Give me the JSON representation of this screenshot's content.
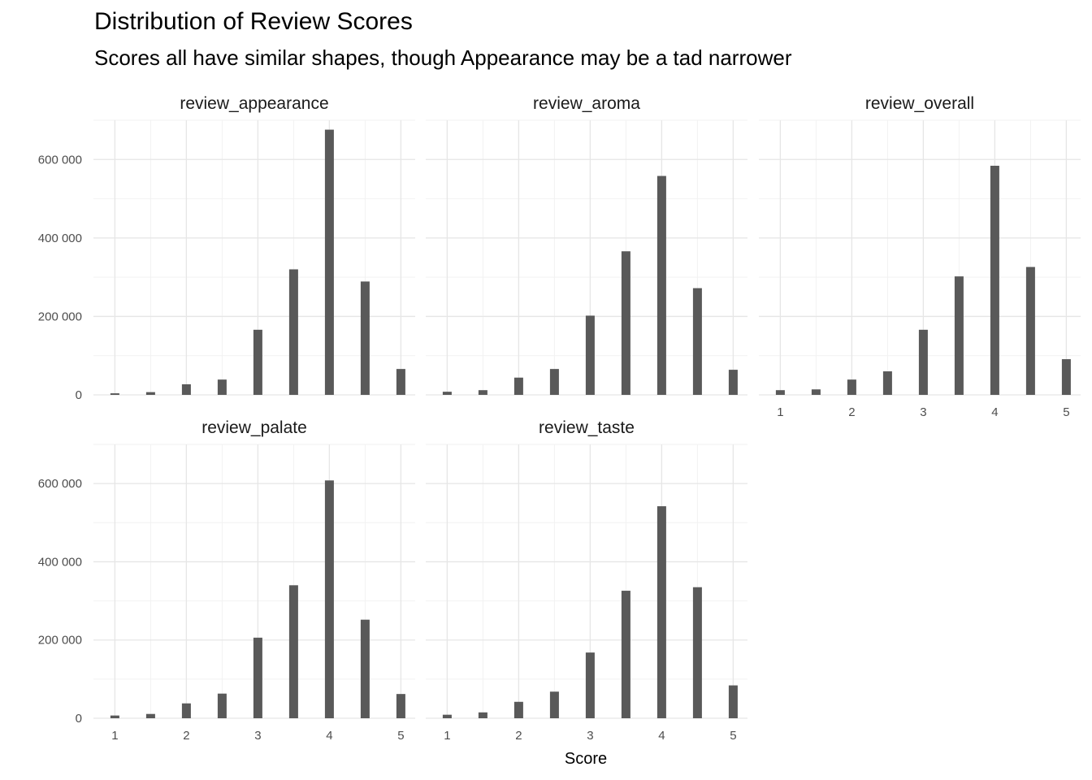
{
  "chart_data": {
    "type": "bar",
    "title": "Distribution of Review Scores",
    "subtitle": "Scores all have similar shapes, though Appearance may be a tad narrower",
    "xlabel": "Score",
    "ylabel": "",
    "xlim": [
      0.7,
      5.2
    ],
    "ylim": [
      0,
      700000
    ],
    "x_ticks": [
      1,
      2,
      3,
      4,
      5
    ],
    "y_ticks": [
      0,
      200000,
      400000,
      600000
    ],
    "y_tick_labels": [
      "0",
      "200 000",
      "400 000",
      "600 000"
    ],
    "x": [
      1,
      1.5,
      2,
      2.5,
      3,
      3.5,
      4,
      4.5,
      5
    ],
    "grid": true,
    "bar_color": "#595959",
    "facets": [
      {
        "name": "review_appearance",
        "values": [
          4000,
          7000,
          27000,
          39000,
          166000,
          320000,
          676000,
          289000,
          66000
        ]
      },
      {
        "name": "review_aroma",
        "values": [
          8000,
          12000,
          44000,
          66000,
          202000,
          366000,
          558000,
          272000,
          64000
        ]
      },
      {
        "name": "review_overall",
        "values": [
          12000,
          14000,
          39000,
          60000,
          166000,
          302000,
          584000,
          326000,
          91000
        ]
      },
      {
        "name": "review_palate",
        "values": [
          7000,
          11000,
          38000,
          63000,
          206000,
          340000,
          608000,
          252000,
          62000
        ]
      },
      {
        "name": "review_taste",
        "values": [
          9000,
          15000,
          42000,
          68000,
          168000,
          326000,
          542000,
          335000,
          84000
        ]
      }
    ]
  }
}
